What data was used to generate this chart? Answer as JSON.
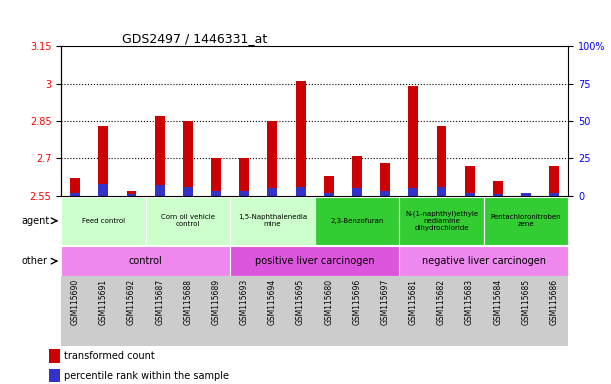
{
  "title": "GDS2497 / 1446331_at",
  "samples": [
    "GSM115690",
    "GSM115691",
    "GSM115692",
    "GSM115687",
    "GSM115688",
    "GSM115689",
    "GSM115693",
    "GSM115694",
    "GSM115695",
    "GSM115680",
    "GSM115696",
    "GSM115697",
    "GSM115681",
    "GSM115682",
    "GSM115683",
    "GSM115684",
    "GSM115685",
    "GSM115686"
  ],
  "transformed_count": [
    2.62,
    2.83,
    2.57,
    2.87,
    2.85,
    2.7,
    2.7,
    2.85,
    3.01,
    2.63,
    2.71,
    2.68,
    2.99,
    2.83,
    2.67,
    2.61,
    2.55,
    2.67
  ],
  "percentile_rank": [
    2,
    8,
    1,
    7,
    6,
    3,
    3,
    5,
    6,
    2,
    5,
    3,
    5,
    6,
    2,
    1,
    2,
    2
  ],
  "ymin": 2.55,
  "ymax": 3.15,
  "yticks": [
    2.55,
    2.7,
    2.85,
    3.0,
    3.15
  ],
  "ytick_labels": [
    "2.55",
    "2.7",
    "2.85",
    "3",
    "3.15"
  ],
  "right_yticks": [
    0,
    25,
    50,
    75,
    100
  ],
  "right_ytick_labels": [
    "0",
    "25",
    "50",
    "75",
    "100%"
  ],
  "bar_color_red": "#cc0000",
  "bar_color_blue": "#3333cc",
  "agent_groups": [
    {
      "label": "Feed control",
      "start": 0,
      "end": 3,
      "color": "#ccffcc"
    },
    {
      "label": "Corn oil vehicle\ncontrol",
      "start": 3,
      "end": 6,
      "color": "#ccffcc"
    },
    {
      "label": "1,5-Naphthalenedia\nmine",
      "start": 6,
      "end": 9,
      "color": "#ccffcc"
    },
    {
      "label": "2,3-Benzofuran",
      "start": 9,
      "end": 12,
      "color": "#33cc33"
    },
    {
      "label": "N-(1-naphthyl)ethyle\nnediamine\ndihydrochloride",
      "start": 12,
      "end": 15,
      "color": "#33cc33"
    },
    {
      "label": "Pentachloronitroben\nzene",
      "start": 15,
      "end": 18,
      "color": "#33cc33"
    }
  ],
  "other_groups": [
    {
      "label": "control",
      "start": 0,
      "end": 6,
      "color": "#ee88ee"
    },
    {
      "label": "positive liver carcinogen",
      "start": 6,
      "end": 12,
      "color": "#dd55dd"
    },
    {
      "label": "negative liver carcinogen",
      "start": 12,
      "end": 18,
      "color": "#ee88ee"
    }
  ],
  "grid_dotted_values": [
    2.7,
    2.85,
    3.0
  ],
  "bar_width": 0.35,
  "percentile_scale_factor": 0.006
}
